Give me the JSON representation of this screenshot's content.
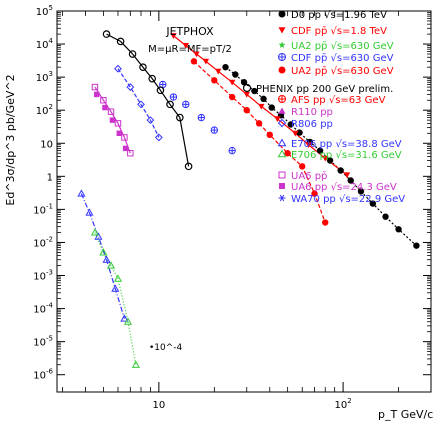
{
  "chart_data": {
    "type": "scatter",
    "xlabel": "p_T GeV/c",
    "ylabel": "Ed^3σ/dp^3 pb/GeV^2",
    "xscale": "log",
    "yscale": "log",
    "xlim": [
      2.8,
      300
    ],
    "ylim": [
      3e-07,
      100000.0
    ],
    "grid": false,
    "legend_position": "right",
    "x_tick_labels": [
      "10",
      "10^2"
    ],
    "y_tick_labels": [
      "10^-6",
      "10^-5",
      "10^-4",
      "10^-3",
      "10^-2",
      "10^-1",
      "1",
      "10",
      "10^2",
      "10^3",
      "10^4",
      "10^5"
    ],
    "title_lines": [
      "JETPHOX",
      "M=μR=MF=pT/2"
    ],
    "annotation": "•10^-4",
    "series": [
      {
        "name": "D0 pp̄ √s=1.96 TeV",
        "color": "#000000",
        "marker": "circle",
        "x": [
          23,
          26,
          29,
          33,
          37,
          41,
          46,
          52,
          58,
          66,
          75,
          85,
          97,
          110,
          125,
          145,
          170,
          200,
          250
        ],
        "y": [
          2000,
          1200,
          700,
          380,
          220,
          120,
          70,
          37,
          21,
          11,
          6,
          3,
          1.5,
          0.75,
          0.35,
          0.15,
          0.06,
          0.025,
          0.008
        ]
      },
      {
        "name": "CDF pp̄ √s=1.8 TeV",
        "color": "#ff0000",
        "marker": "triangle-down",
        "x": [
          12,
          14,
          16,
          18,
          21,
          25,
          30,
          36,
          44,
          55,
          65,
          80,
          105
        ],
        "y": [
          18000,
          9000,
          5000,
          3000,
          1500,
          700,
          300,
          130,
          55,
          20,
          9,
          3.5,
          1.1
        ]
      },
      {
        "name": "UA2 pp̄ √s=630 GeV",
        "color": "#ff0000",
        "marker": "circle",
        "x": [
          15.5,
          20,
          25,
          30,
          35,
          40,
          50,
          60,
          70,
          80
        ],
        "y": [
          3000,
          800,
          250,
          100,
          40,
          18,
          5,
          2,
          0.3,
          0.04
        ]
      },
      {
        "name": "CDF pp̄ √s=630 GeV",
        "color": "#3333ff",
        "marker": "circle-cross",
        "x": [
          10.5,
          12,
          14,
          17,
          20,
          25
        ],
        "y": [
          600,
          250,
          150,
          60,
          25,
          6
        ]
      },
      {
        "name": "PHENIX pp 200 GeV prelim.",
        "color": "#000000",
        "marker": "circle-open",
        "x": [
          5.2,
          6.2,
          7.2,
          8.2,
          9.2,
          10.2,
          11.5,
          13,
          14.5
        ],
        "y": [
          20000,
          12000,
          5000,
          2000,
          900,
          400,
          150,
          60,
          2
        ]
      },
      {
        "name": "E706 pp √s=38.8 GeV",
        "color": "#3333ff",
        "marker": "triangle-open",
        "x": [
          3.8,
          4.2,
          4.7,
          5.2,
          5.8,
          6.5
        ],
        "y": [
          0.3,
          0.08,
          0.015,
          0.003,
          0.0004,
          5e-05
        ]
      },
      {
        "name": "E706 pp √s=31.6 GeV",
        "color": "#33cc33",
        "marker": "triangle-open",
        "x": [
          4.5,
          5.0,
          5.5,
          6.0,
          6.8,
          7.5
        ],
        "y": [
          0.02,
          0.005,
          0.002,
          0.0008,
          4e-05,
          2e-06
        ]
      },
      {
        "name": "UA6 pp̄",
        "color": "#cc33cc",
        "marker": "square-open",
        "x": [
          4.5,
          5,
          5.5,
          6,
          6.5,
          7
        ],
        "y": [
          500,
          200,
          90,
          40,
          15,
          5
        ]
      },
      {
        "name": "UA6 pp √s=24.3 GeV",
        "color": "#cc33cc",
        "marker": "square",
        "x": [
          4.6,
          5.1,
          5.6,
          6.1,
          6.6
        ],
        "y": [
          300,
          120,
          50,
          20,
          7
        ]
      },
      {
        "name": "R806 pp",
        "color": "#3333ff",
        "marker": "diamond",
        "x": [
          6,
          7,
          8,
          9,
          10
        ],
        "y": [
          1800,
          500,
          150,
          50,
          15
        ]
      }
    ]
  },
  "legend": [
    {
      "label": "D0 pp̄ √s=1.96 TeV",
      "color": "#000000",
      "icon": "filled-circle"
    },
    {
      "label": "CDF pp̄ √s=1.8 TeV",
      "color": "#ff0000",
      "icon": "filled-triangle-down"
    },
    {
      "label": "UA2 pp̄ √s=630 GeV",
      "color": "#33cc33",
      "icon": "star"
    },
    {
      "label": "CDF pp̄ √s=630 GeV",
      "color": "#3333ff",
      "icon": "circle-cross"
    },
    {
      "label": "UA2 pp̄ √s=630 GeV",
      "color": "#ff0000",
      "icon": "filled-circle"
    },
    {
      "label": "PHENIX pp 200 GeV prelim.",
      "color": "#000000",
      "icon": "open-circle"
    },
    {
      "label": "AFS pp √s=63 GeV",
      "color": "#ff0000",
      "icon": "circle-cross"
    },
    {
      "label": "R110 pp",
      "color": "#cc33cc",
      "icon": "filled-triangle"
    },
    {
      "label": "R806 pp",
      "color": "#3333ff",
      "icon": "diamond"
    },
    {
      "label": "E706 pp √s=38.8 GeV",
      "color": "#3333ff",
      "icon": "open-triangle"
    },
    {
      "label": "E706 pp √s=31.6 GeV",
      "color": "#33cc33",
      "icon": "open-triangle"
    },
    {
      "label": "UA6 pp̄",
      "color": "#cc33cc",
      "icon": "open-square"
    },
    {
      "label": "UA6 pp √s=24.3 GeV",
      "color": "#cc33cc",
      "icon": "filled-square"
    },
    {
      "label": "WA70 pp √s=22.9 GeV",
      "color": "#3333ff",
      "icon": "asterisk"
    }
  ]
}
